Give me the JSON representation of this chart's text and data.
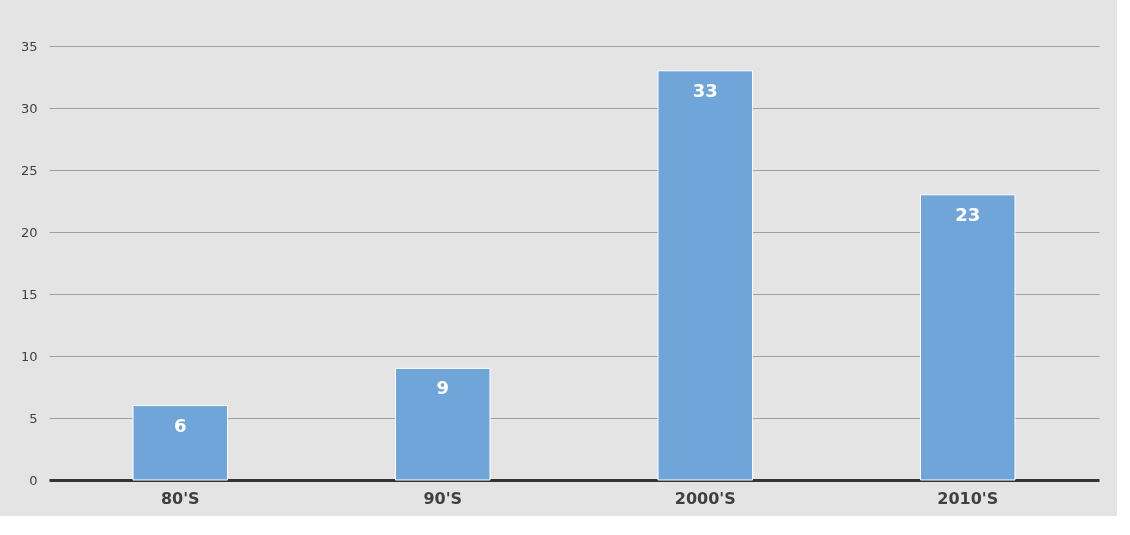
{
  "chart_data": {
    "type": "bar",
    "categories": [
      "80'S",
      "90'S",
      "2000'S",
      "2010'S"
    ],
    "values": [
      6,
      9,
      33,
      23
    ],
    "color": "#6fa5d9",
    "ylim": [
      0,
      35
    ],
    "yticks": [
      0,
      5,
      10,
      15,
      20,
      25,
      30,
      35
    ],
    "grid": "y",
    "data_labels": true
  }
}
